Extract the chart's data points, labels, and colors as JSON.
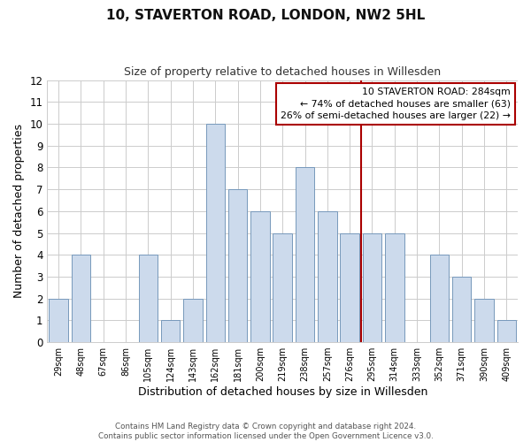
{
  "title": "10, STAVERTON ROAD, LONDON, NW2 5HL",
  "subtitle": "Size of property relative to detached houses in Willesden",
  "xlabel": "Distribution of detached houses by size in Willesden",
  "ylabel": "Number of detached properties",
  "bar_labels": [
    "29sqm",
    "48sqm",
    "67sqm",
    "86sqm",
    "105sqm",
    "124sqm",
    "143sqm",
    "162sqm",
    "181sqm",
    "200sqm",
    "219sqm",
    "238sqm",
    "257sqm",
    "276sqm",
    "295sqm",
    "314sqm",
    "333sqm",
    "352sqm",
    "371sqm",
    "390sqm",
    "409sqm"
  ],
  "bar_values": [
    2,
    4,
    0,
    0,
    4,
    1,
    2,
    10,
    7,
    6,
    5,
    8,
    6,
    5,
    5,
    5,
    0,
    4,
    3,
    2,
    1
  ],
  "bar_color": "#ccdaec",
  "bar_edge_color": "#7799bb",
  "ylim": [
    0,
    12
  ],
  "yticks": [
    0,
    1,
    2,
    3,
    4,
    5,
    6,
    7,
    8,
    9,
    10,
    11,
    12
  ],
  "vline_x": 13.5,
  "vline_color": "#aa0000",
  "annotation_text": "10 STAVERTON ROAD: 284sqm\n← 74% of detached houses are smaller (63)\n26% of semi-detached houses are larger (22) →",
  "annotation_box_edge_color": "#aa0000",
  "footer_line1": "Contains HM Land Registry data © Crown copyright and database right 2024.",
  "footer_line2": "Contains public sector information licensed under the Open Government Licence v3.0.",
  "background_color": "#ffffff",
  "grid_color": "#cccccc",
  "bar_width": 0.85
}
